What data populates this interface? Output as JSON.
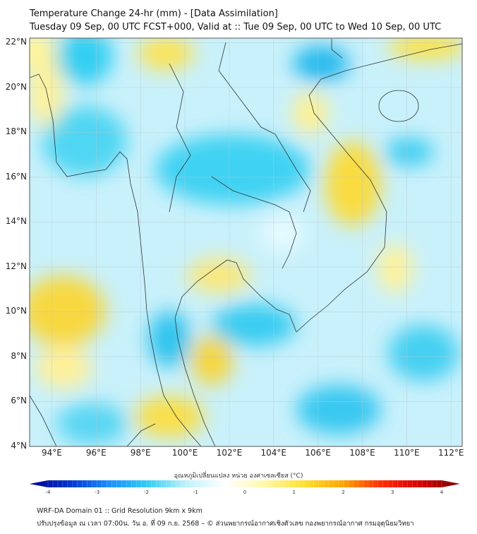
{
  "header": {
    "title": "Temperature Change 24-hr (mm) - [Data Assimilation]",
    "subtitle": "Tuesday 09 Sep, 00 UTC FCST+000, Valid at :: Tue 09 Sep, 00 UTC to Wed 10 Sep, 00 UTC"
  },
  "map": {
    "lat_labels": [
      "22°N",
      "20°N",
      "18°N",
      "16°N",
      "14°N",
      "12°N",
      "10°N",
      "8°N",
      "6°N",
      "4°N"
    ],
    "lon_labels": [
      "94°E",
      "96°E",
      "98°E",
      "100°E",
      "102°E",
      "104°E",
      "106°E",
      "108°E",
      "110°E",
      "112°E"
    ],
    "extent": {
      "lon_min": 93,
      "lon_max": 112.5,
      "lat_min": 4,
      "lat_max": 22.2
    }
  },
  "colorbar": {
    "title": "อุณหภูมิเปลี่ยนแปลง หน่วย องศาเซลเซียส (°C)",
    "ticks": [
      "-4",
      "-3",
      "-2",
      "-1",
      "0",
      "1",
      "2",
      "3",
      "4"
    ],
    "range": [
      -4,
      4
    ],
    "colors": [
      "#00008b",
      "#0033cc",
      "#1a8cff",
      "#33ccf5",
      "#bff2fa",
      "#ffffff",
      "#fff9a8",
      "#ffe033",
      "#ffa500",
      "#ff2a00",
      "#d40000",
      "#7a0000"
    ]
  },
  "footer": {
    "line1": "WRF-DA Domain 01 :: Grid Resolution 9km x 9km",
    "line2": "ปรับปรุงข้อมูล ณ เวลา 07:00น. วัน อ. ที่ 09 ก.ย. 2568 – © ส่วนพยากรณ์อากาศเชิงตัวเลข กองพยากรณ์อากาศ กรมอุตุนิยมวิทยา"
  }
}
